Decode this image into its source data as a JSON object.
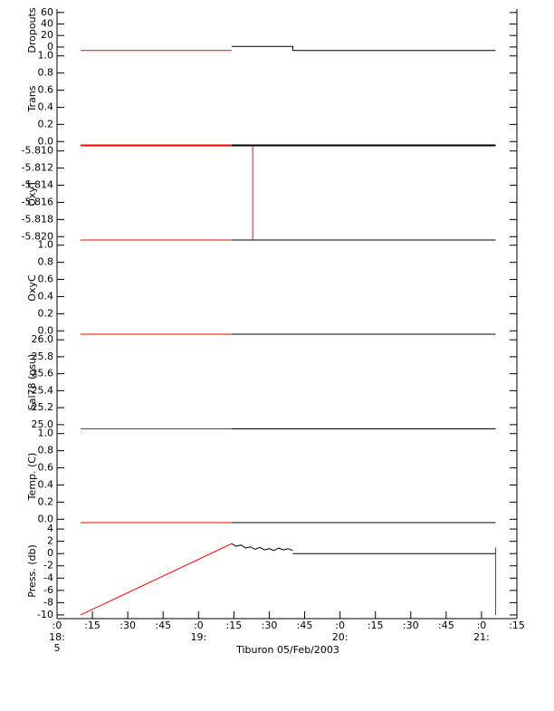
{
  "chart_data": {
    "type": "line",
    "xlabel": "Tiburon 05/Feb/2003",
    "xlim": [
      0,
      195
    ],
    "xticks": [
      {
        "value": 0,
        "label": ":0"
      },
      {
        "value": 15,
        "label": ":15"
      },
      {
        "value": 30,
        "label": ":30"
      },
      {
        "value": 45,
        "label": ":45"
      },
      {
        "value": 60,
        "label": ":0"
      },
      {
        "value": 75,
        "label": ":15"
      },
      {
        "value": 90,
        "label": ":30"
      },
      {
        "value": 105,
        "label": ":45"
      },
      {
        "value": 120,
        "label": ":0"
      },
      {
        "value": 135,
        "label": ":15"
      },
      {
        "value": 150,
        "label": ":30"
      },
      {
        "value": 165,
        "label": ":45"
      },
      {
        "value": 180,
        "label": ":0"
      },
      {
        "value": 195,
        "label": ":15"
      }
    ],
    "hour_labels": [
      {
        "value": 0,
        "label": "18:"
      },
      {
        "value": 60,
        "label": "19:"
      },
      {
        "value": 120,
        "label": "20:"
      },
      {
        "value": 180,
        "label": "21:"
      }
    ],
    "day_label": "5",
    "panels": [
      {
        "ylabel": "Dropouts",
        "ylim": [
          -8,
          66
        ],
        "yticks": [
          0,
          20,
          40,
          60
        ],
        "series": [
          {
            "color": "#ff0000",
            "x": [
              10,
              74
            ],
            "values": [
              -6,
              -6
            ]
          },
          {
            "color": "#000000",
            "x": [
              74,
              100,
              100,
              186
            ],
            "values": [
              1,
              1,
              -6,
              -6
            ]
          }
        ]
      },
      {
        "ylabel": "Trans",
        "ylim": [
          -0.05,
          1.05
        ],
        "yticks": [
          {
            "value": 0,
            "label": "0.0"
          },
          0.2,
          0.4,
          0.6,
          0.8,
          {
            "value": 1,
            "label": "1.0"
          }
        ],
        "series": [
          {
            "color": "#ff0000",
            "x": [
              10,
              74
            ],
            "values": [
              -0.04,
              -0.04
            ]
          },
          {
            "color": "#000000",
            "x": [
              74,
              186
            ],
            "values": [
              -0.04,
              -0.04
            ]
          }
        ]
      },
      {
        "ylabel": "OxyT",
        "ylim": [
          -5.8205,
          -5.8094
        ],
        "yticks": [
          {
            "value": -5.81,
            "label": "-5.810"
          },
          -5.812,
          -5.814,
          -5.816,
          -5.818,
          {
            "value": -5.82,
            "label": "-5.820"
          }
        ],
        "series": [
          {
            "color": "#ff0000",
            "x": [
              10,
              74
            ],
            "values": [
              -5.8094,
              -5.8094
            ]
          },
          {
            "color": "#ff0000",
            "x": [
              10,
              74
            ],
            "values": [
              -5.8204,
              -5.8204
            ]
          },
          {
            "color": "#000000",
            "x": [
              74,
              186
            ],
            "values": [
              -5.8094,
              -5.8094
            ]
          },
          {
            "color": "#000000",
            "x": [
              74,
              186
            ],
            "values": [
              -5.8204,
              -5.8204
            ]
          },
          {
            "color": "#ff0000",
            "x": [
              83,
              83
            ],
            "values": [
              -5.8094,
              -5.8204
            ]
          }
        ]
      },
      {
        "ylabel": "OxyC",
        "ylim": [
          -0.05,
          1.05
        ],
        "yticks": [
          {
            "value": 0,
            "label": "0.0"
          },
          0.2,
          0.4,
          0.6,
          0.8,
          {
            "value": 1,
            "label": "1.0"
          }
        ],
        "series": [
          {
            "color": "#ff0000",
            "x": [
              10,
              74
            ],
            "values": [
              -0.04,
              -0.04
            ]
          },
          {
            "color": "#000000",
            "x": [
              74,
              186
            ],
            "values": [
              -0.04,
              -0.04
            ]
          }
        ]
      },
      {
        "ylabel": "Sal78 (psu)",
        "ylim": [
          24.945,
          26.055
        ],
        "yticks": [
          {
            "value": 25,
            "label": "25.0"
          },
          25.2,
          25.4,
          25.6,
          25.8,
          {
            "value": 26,
            "label": "26.0"
          }
        ],
        "series": [
          {
            "color": "#ff0000",
            "x": [
              10,
              74
            ],
            "values": [
              24.95,
              24.95
            ]
          },
          {
            "color": "#000000",
            "x": [
              74,
              186
            ],
            "values": [
              24.95,
              24.95
            ]
          }
        ]
      },
      {
        "ylabel": "Temp. (C)",
        "ylim": [
          -0.05,
          1.05
        ],
        "yticks": [
          {
            "value": 0,
            "label": "0.0"
          },
          0.2,
          0.4,
          0.6,
          0.8,
          {
            "value": 1,
            "label": "1.0"
          }
        ],
        "series": [
          {
            "color": "#ff0000",
            "x": [
              10,
              74
            ],
            "values": [
              -0.04,
              -0.04
            ]
          },
          {
            "color": "#000000",
            "x": [
              74,
              186
            ],
            "values": [
              -0.04,
              -0.04
            ]
          }
        ]
      },
      {
        "ylabel": "Press. (db)",
        "ylim": [
          -10.6,
          4.9
        ],
        "yticks": [
          4,
          2,
          0,
          -2,
          -4,
          -6,
          -8,
          -10
        ],
        "series": [
          {
            "color": "#ff0000",
            "x": [
              10,
              74
            ],
            "values": [
              -10,
              1.6
            ]
          },
          {
            "color": "#000000",
            "x": [
              74,
              76,
              78,
              80,
              82,
              84,
              86,
              88,
              90,
              92,
              94,
              96,
              98,
              100
            ],
            "values": [
              1.6,
              1.2,
              1.4,
              0.9,
              1.1,
              0.7,
              1.0,
              0.6,
              0.8,
              0.5,
              0.9,
              0.6,
              0.8,
              0.5
            ]
          },
          {
            "color": "#000000",
            "x": [
              100,
              186
            ],
            "values": [
              0,
              0
            ]
          },
          {
            "color": "#ff0000",
            "x": [
              186,
              186
            ],
            "values": [
              1,
              -10
            ]
          }
        ]
      }
    ]
  }
}
